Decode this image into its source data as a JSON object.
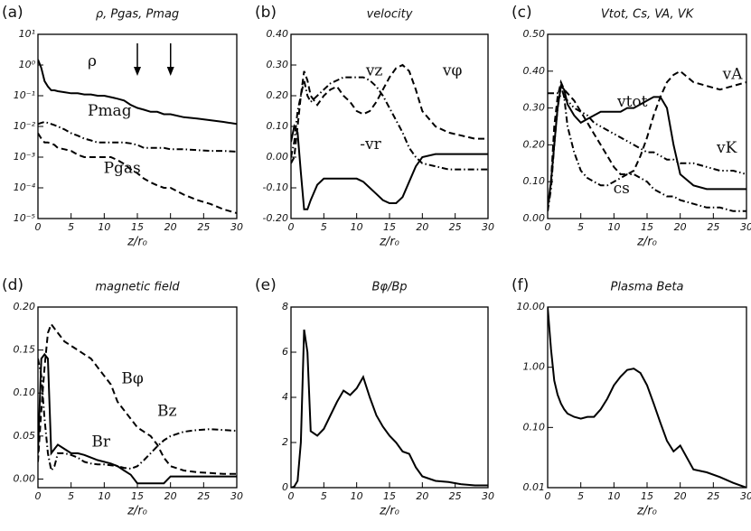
{
  "chart_data": [
    {
      "type": "line",
      "label": "(a)",
      "title": "ρ, Pgas, Pmag",
      "xlabel": "z/r₀",
      "ylog": true,
      "x": [
        0,
        0.5,
        1,
        1.5,
        2,
        2.5,
        3,
        4,
        5,
        6,
        7,
        8,
        9,
        10,
        11,
        12,
        13,
        14,
        15,
        16,
        17,
        18,
        19,
        20,
        22,
        24,
        26,
        28,
        30
      ],
      "xlim": [
        0,
        30
      ],
      "xticks": [
        0,
        5,
        10,
        15,
        20,
        25,
        30
      ],
      "ylim": [
        1e-05,
        10
      ],
      "yticks": [
        {
          "value": 1e-05,
          "label": "10⁻⁵"
        },
        {
          "value": 0.0001,
          "label": "10⁻⁴"
        },
        {
          "value": 0.001,
          "label": "10⁻³"
        },
        {
          "value": 0.01,
          "label": "10⁻²"
        },
        {
          "value": 0.1,
          "label": "10⁻¹"
        },
        {
          "value": 1,
          "label": "10⁰"
        },
        {
          "value": 10,
          "label": "10¹"
        }
      ],
      "annotations": [
        "ρ",
        "Pmag",
        "Pgas"
      ],
      "series": [
        {
          "name": "ρ",
          "color": "#000000",
          "style": "solid",
          "values": [
            1.5,
            0.8,
            0.3,
            0.2,
            0.15,
            0.15,
            0.14,
            0.13,
            0.12,
            0.12,
            0.11,
            0.11,
            0.1,
            0.1,
            0.09,
            0.08,
            0.07,
            0.05,
            0.04,
            0.035,
            0.03,
            0.03,
            0.025,
            0.025,
            0.02,
            0.018,
            0.016,
            0.014,
            0.012
          ]
        },
        {
          "name": "Pmag",
          "color": "#000000",
          "style": "dashdot",
          "values": [
            0.012,
            0.013,
            0.014,
            0.013,
            0.012,
            0.011,
            0.01,
            0.008,
            0.006,
            0.005,
            0.004,
            0.0035,
            0.003,
            0.003,
            0.003,
            0.003,
            0.003,
            0.0028,
            0.0025,
            0.002,
            0.002,
            0.002,
            0.002,
            0.0018,
            0.0018,
            0.0017,
            0.0016,
            0.0016,
            0.0015
          ]
        },
        {
          "name": "Pgas",
          "color": "#000000",
          "style": "dashed",
          "values": [
            0.006,
            0.004,
            0.003,
            0.003,
            0.0028,
            0.0025,
            0.002,
            0.0018,
            0.0016,
            0.0012,
            0.001,
            0.001,
            0.001,
            0.001,
            0.001,
            0.0008,
            0.0006,
            0.0004,
            0.0003,
            0.0002,
            0.00015,
            0.00012,
            0.0001,
            0.0001,
            6e-05,
            4e-05,
            3e-05,
            2e-05,
            1.5e-05
          ]
        }
      ]
    },
    {
      "type": "line",
      "label": "(b)",
      "title": "velocity",
      "xlabel": "z/r₀",
      "ylog": false,
      "x": [
        0,
        0.5,
        1,
        1.5,
        2,
        2.5,
        3,
        4,
        5,
        6,
        7,
        8,
        9,
        10,
        11,
        12,
        13,
        14,
        15,
        16,
        17,
        18,
        19,
        20,
        22,
        24,
        26,
        28,
        30
      ],
      "xlim": [
        0,
        30
      ],
      "xticks": [
        0,
        5,
        10,
        15,
        20,
        25,
        30
      ],
      "ylim": [
        -0.2,
        0.4
      ],
      "yticks": [
        {
          "value": -0.2,
          "label": "-0.20"
        },
        {
          "value": -0.1,
          "label": "-0.10"
        },
        {
          "value": 0,
          "label": "0.00"
        },
        {
          "value": 0.1,
          "label": "0.10"
        },
        {
          "value": 0.2,
          "label": "0.20"
        },
        {
          "value": 0.3,
          "label": "0.30"
        },
        {
          "value": 0.4,
          "label": "0.40"
        }
      ],
      "annotations": [
        "vz",
        "vφ",
        "-vr"
      ],
      "series": [
        {
          "name": "vz",
          "color": "#000000",
          "style": "dashdot",
          "values": [
            0,
            0.05,
            0.15,
            0.2,
            0.25,
            0.2,
            0.18,
            0.2,
            0.22,
            0.24,
            0.25,
            0.26,
            0.26,
            0.26,
            0.26,
            0.25,
            0.23,
            0.2,
            0.16,
            0.12,
            0.08,
            0.03,
            0,
            -0.02,
            -0.03,
            -0.04,
            -0.04,
            -0.04,
            -0.04
          ]
        },
        {
          "name": "vφ",
          "color": "#000000",
          "style": "dashed",
          "values": [
            -0.02,
            0,
            0.1,
            0.2,
            0.28,
            0.25,
            0.2,
            0.17,
            0.2,
            0.22,
            0.23,
            0.2,
            0.18,
            0.15,
            0.14,
            0.15,
            0.18,
            0.22,
            0.26,
            0.29,
            0.3,
            0.28,
            0.22,
            0.15,
            0.1,
            0.08,
            0.07,
            0.06,
            0.06
          ]
        },
        {
          "name": "-vr",
          "color": "#000000",
          "style": "solid",
          "values": [
            0.05,
            0.1,
            0.08,
            -0.05,
            -0.17,
            -0.17,
            -0.14,
            -0.09,
            -0.07,
            -0.07,
            -0.07,
            -0.07,
            -0.07,
            -0.07,
            -0.08,
            -0.1,
            -0.12,
            -0.14,
            -0.15,
            -0.15,
            -0.13,
            -0.08,
            -0.03,
            0,
            0.01,
            0.01,
            0.01,
            0.01,
            0.01
          ]
        }
      ]
    },
    {
      "type": "line",
      "label": "(c)",
      "title": "Vtot, Cs, VA, VK",
      "xlabel": "z/r₀",
      "ylog": false,
      "x": [
        0,
        0.5,
        1,
        1.5,
        2,
        2.5,
        3,
        4,
        5,
        6,
        7,
        8,
        9,
        10,
        11,
        12,
        13,
        14,
        15,
        16,
        17,
        18,
        19,
        20,
        22,
        24,
        26,
        28,
        30
      ],
      "xlim": [
        0,
        30
      ],
      "xticks": [
        0,
        5,
        10,
        15,
        20,
        25,
        30
      ],
      "ylim": [
        0,
        0.5
      ],
      "yticks": [
        {
          "value": 0,
          "label": "0.00"
        },
        {
          "value": 0.1,
          "label": "0.10"
        },
        {
          "value": 0.2,
          "label": "0.20"
        },
        {
          "value": 0.3,
          "label": "0.30"
        },
        {
          "value": 0.4,
          "label": "0.40"
        },
        {
          "value": 0.5,
          "label": "0.50"
        }
      ],
      "annotations": [
        "vtot",
        "vA",
        "vK",
        "cs"
      ],
      "series": [
        {
          "name": "vtot",
          "color": "#000000",
          "style": "solid",
          "values": [
            0.03,
            0.1,
            0.2,
            0.3,
            0.36,
            0.35,
            0.31,
            0.28,
            0.26,
            0.27,
            0.28,
            0.29,
            0.29,
            0.29,
            0.29,
            0.3,
            0.3,
            0.31,
            0.32,
            0.33,
            0.33,
            0.3,
            0.2,
            0.12,
            0.09,
            0.08,
            0.08,
            0.08,
            0.08
          ]
        },
        {
          "name": "vA",
          "color": "#000000",
          "style": "dashed",
          "values": [
            0.02,
            0.1,
            0.25,
            0.33,
            0.37,
            0.35,
            0.34,
            0.32,
            0.29,
            0.26,
            0.23,
            0.2,
            0.17,
            0.14,
            0.12,
            0.12,
            0.13,
            0.17,
            0.22,
            0.28,
            0.33,
            0.37,
            0.39,
            0.4,
            0.37,
            0.36,
            0.35,
            0.36,
            0.37
          ]
        },
        {
          "name": "vK",
          "color": "#000000",
          "style": "dashdotdot",
          "values": [
            0.34,
            0.34,
            0.34,
            0.34,
            0.33,
            0.33,
            0.32,
            0.3,
            0.29,
            0.28,
            0.26,
            0.25,
            0.24,
            0.23,
            0.22,
            0.21,
            0.2,
            0.19,
            0.18,
            0.18,
            0.17,
            0.16,
            0.16,
            0.15,
            0.15,
            0.14,
            0.13,
            0.13,
            0.12
          ]
        },
        {
          "name": "cs",
          "color": "#000000",
          "style": "dashdot",
          "values": [
            0.02,
            0.08,
            0.2,
            0.3,
            0.36,
            0.33,
            0.25,
            0.18,
            0.13,
            0.11,
            0.1,
            0.09,
            0.09,
            0.1,
            0.11,
            0.12,
            0.12,
            0.11,
            0.1,
            0.08,
            0.07,
            0.06,
            0.06,
            0.05,
            0.04,
            0.03,
            0.03,
            0.02,
            0.02
          ]
        }
      ]
    },
    {
      "type": "line",
      "label": "(d)",
      "title": "magnetic field",
      "xlabel": "z/r₀",
      "ylog": false,
      "x": [
        0,
        0.5,
        1,
        1.5,
        2,
        2.5,
        3,
        4,
        5,
        6,
        7,
        8,
        9,
        10,
        11,
        12,
        13,
        14,
        15,
        16,
        17,
        18,
        19,
        20,
        22,
        24,
        26,
        28,
        30
      ],
      "xlim": [
        0,
        30
      ],
      "xticks": [
        0,
        5,
        10,
        15,
        20,
        25,
        30
      ],
      "ylim": [
        -0.01,
        0.2
      ],
      "yticks": [
        {
          "value": 0,
          "label": "0.00"
        },
        {
          "value": 0.05,
          "label": "0.05"
        },
        {
          "value": 0.1,
          "label": "0.10"
        },
        {
          "value": 0.15,
          "label": "0.15"
        },
        {
          "value": 0.2,
          "label": "0.20"
        }
      ],
      "annotations": [
        "Bφ",
        "Br",
        "Bz"
      ],
      "series": [
        {
          "name": "Bφ",
          "color": "#000000",
          "style": "dashed",
          "values": [
            0.02,
            0.08,
            0.13,
            0.17,
            0.18,
            0.175,
            0.17,
            0.16,
            0.155,
            0.15,
            0.145,
            0.14,
            0.13,
            0.12,
            0.11,
            0.09,
            0.08,
            0.07,
            0.06,
            0.055,
            0.05,
            0.04,
            0.025,
            0.015,
            0.01,
            0.008,
            0.007,
            0.006,
            0.006
          ]
        },
        {
          "name": "Br",
          "color": "#000000",
          "style": "solid",
          "values": [
            0.03,
            0.14,
            0.145,
            0.14,
            0.03,
            0.035,
            0.04,
            0.035,
            0.03,
            0.03,
            0.028,
            0.025,
            0.022,
            0.02,
            0.018,
            0.015,
            0.01,
            0.005,
            -0.005,
            -0.005,
            -0.005,
            -0.005,
            -0.005,
            0.003,
            0.003,
            0.003,
            0.003,
            0.003,
            0.003
          ]
        },
        {
          "name": "Bz",
          "color": "#000000",
          "style": "dashdot",
          "values": [
            0.14,
            0.12,
            0.07,
            0.03,
            0.01,
            0.015,
            0.03,
            0.03,
            0.028,
            0.025,
            0.02,
            0.018,
            0.017,
            0.017,
            0.016,
            0.015,
            0.013,
            0.012,
            0.015,
            0.022,
            0.03,
            0.038,
            0.045,
            0.05,
            0.055,
            0.057,
            0.058,
            0.057,
            0.056
          ]
        }
      ]
    },
    {
      "type": "line",
      "label": "(e)",
      "title": "Bφ/Bp",
      "xlabel": "z/r₀",
      "ylog": false,
      "x": [
        0,
        0.5,
        1,
        1.5,
        2,
        2.5,
        3,
        4,
        5,
        6,
        7,
        8,
        9,
        10,
        11,
        12,
        13,
        14,
        15,
        16,
        17,
        18,
        19,
        20,
        22,
        24,
        26,
        28,
        30
      ],
      "xlim": [
        0,
        30
      ],
      "xticks": [
        0,
        5,
        10,
        15,
        20,
        25,
        30
      ],
      "ylim": [
        0,
        8
      ],
      "yticks": [
        0,
        2,
        4,
        6,
        8
      ],
      "annotations": [],
      "series": [
        {
          "name": "Bφ/Bp",
          "color": "#000000",
          "style": "solid",
          "values": [
            0,
            0.05,
            0.3,
            2,
            7,
            6,
            2.5,
            2.3,
            2.6,
            3.2,
            3.8,
            4.3,
            4.1,
            4.4,
            4.9,
            4,
            3.2,
            2.7,
            2.3,
            2,
            1.6,
            1.5,
            0.9,
            0.5,
            0.3,
            0.25,
            0.15,
            0.1,
            0.1
          ]
        }
      ]
    },
    {
      "type": "line",
      "label": "(f)",
      "title": "Plasma Beta",
      "xlabel": "z/r₀",
      "ylog": true,
      "x": [
        0,
        0.5,
        1,
        1.5,
        2,
        2.5,
        3,
        4,
        5,
        6,
        7,
        8,
        9,
        10,
        11,
        12,
        13,
        14,
        15,
        16,
        17,
        18,
        19,
        20,
        22,
        24,
        26,
        28,
        30
      ],
      "xlim": [
        0,
        30
      ],
      "xticks": [
        0,
        5,
        10,
        15,
        20,
        25,
        30
      ],
      "ylim": [
        0.01,
        10
      ],
      "yticks": [
        {
          "value": 0.01,
          "label": "0.01"
        },
        {
          "value": 0.1,
          "label": "0.10"
        },
        {
          "value": 1,
          "label": "1.00"
        },
        {
          "value": 10,
          "label": "10.00"
        }
      ],
      "annotations": [],
      "series": [
        {
          "name": "Plasma Beta",
          "color": "#000000",
          "style": "solid",
          "values": [
            10,
            2,
            0.6,
            0.35,
            0.25,
            0.2,
            0.17,
            0.15,
            0.14,
            0.15,
            0.15,
            0.2,
            0.3,
            0.5,
            0.7,
            0.9,
            0.95,
            0.8,
            0.5,
            0.25,
            0.12,
            0.06,
            0.04,
            0.05,
            0.02,
            0.018,
            0.015,
            0.012,
            0.01
          ]
        }
      ]
    }
  ]
}
